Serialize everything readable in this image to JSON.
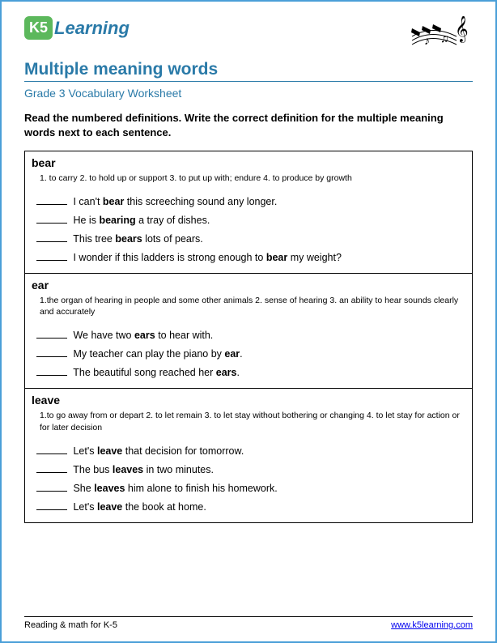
{
  "logo": {
    "badge": "K5",
    "text": "Learning"
  },
  "title": "Multiple meaning words",
  "subtitle": "Grade 3 Vocabulary Worksheet",
  "instructions": "Read the numbered definitions. Write the correct definition for the multiple meaning words next to each sentence.",
  "boxes": [
    {
      "word": "bear",
      "definitions": "1.  to carry    2. to hold up or support   3. to put up with; endure   4. to produce by growth",
      "sentences": [
        {
          "pre": " I can't ",
          "bold": "bear",
          "post": " this screeching sound any longer."
        },
        {
          "pre": "  He is ",
          "bold": "bearing",
          "post": " a tray of dishes."
        },
        {
          "pre": " This tree ",
          "bold": "bears",
          "post": " lots of pears."
        },
        {
          "pre": " I wonder if this ladders is strong enough to ",
          "bold": "bear",
          "post": " my weight?"
        }
      ]
    },
    {
      "word": "ear",
      "definitions": "1.the organ of hearing in people and some other animals   2. sense of hearing   3. an ability to hear sounds clearly and accurately",
      "sentences": [
        {
          "pre": "  We have two ",
          "bold": "ears",
          "post": " to hear with."
        },
        {
          "pre": " My teacher can play the piano by ",
          "bold": "ear",
          "post": "."
        },
        {
          "pre": " The beautiful song reached her ",
          "bold": "ears",
          "post": "."
        }
      ]
    },
    {
      "word": "leave",
      "definitions": "1.to go away from or depart   2. to let remain   3. to let stay without bothering or changing   4. to let stay for action or for later decision",
      "sentences": [
        {
          "pre": "  Let's ",
          "bold": "leave",
          "post": " that decision for tomorrow."
        },
        {
          "pre": "  The bus ",
          "bold": "leaves",
          "post": " in two minutes."
        },
        {
          "pre": "  She ",
          "bold": "leaves",
          "post": " him alone to finish his homework."
        },
        {
          "pre": "  Let's ",
          "bold": "leave",
          "post": " the book at home."
        }
      ]
    }
  ],
  "footer": {
    "left": "Reading & math for K-5",
    "right": "www.k5learning.com"
  },
  "colors": {
    "border": "#4a9fd8",
    "heading": "#2a7aa8",
    "logo_badge_bg": "#5cb85c",
    "link": "#0000ee"
  }
}
